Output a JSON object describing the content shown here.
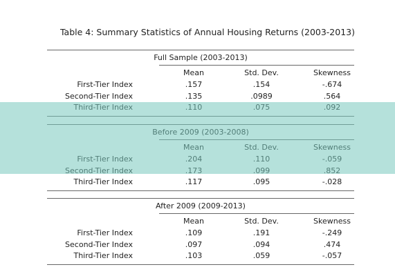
{
  "title": "Table 4: Summary Statistics of Annual Housing Returns (2003-2013)",
  "sections": [
    {
      "title": "Full Sample (2003-2013)",
      "columns": [
        "Mean",
        "Std. Dev.",
        "Skewness"
      ],
      "rows": [
        [
          "First-Tier Index",
          ".157",
          ".154",
          "-.674"
        ],
        [
          "Second-Tier Index",
          ".135",
          ".0989",
          ".564"
        ],
        [
          "Third-Tier Index",
          ".110",
          ".075",
          ".092"
        ]
      ]
    },
    {
      "title": "Before 2009 (2003-2008)",
      "columns": [
        "Mean",
        "Std. Dev.",
        "Skewness"
      ],
      "rows": [
        [
          "First-Tier Index",
          ".204",
          ".110",
          "-.059"
        ],
        [
          "Second-Tier Index",
          ".173",
          ".099",
          ".852"
        ],
        [
          "Third-Tier Index",
          ".117",
          ".095",
          "-.028"
        ]
      ]
    },
    {
      "title": "After 2009 (2009-2013)",
      "columns": [
        "Mean",
        "Std. Dev.",
        "Skewness"
      ],
      "rows": [
        [
          "First-Tier Index",
          ".109",
          ".191",
          "-.249"
        ],
        [
          "Second-Tier Index",
          ".097",
          ".094",
          ".474"
        ],
        [
          "Third-Tier Index",
          ".103",
          ".059",
          "-.057"
        ]
      ]
    }
  ]
}
